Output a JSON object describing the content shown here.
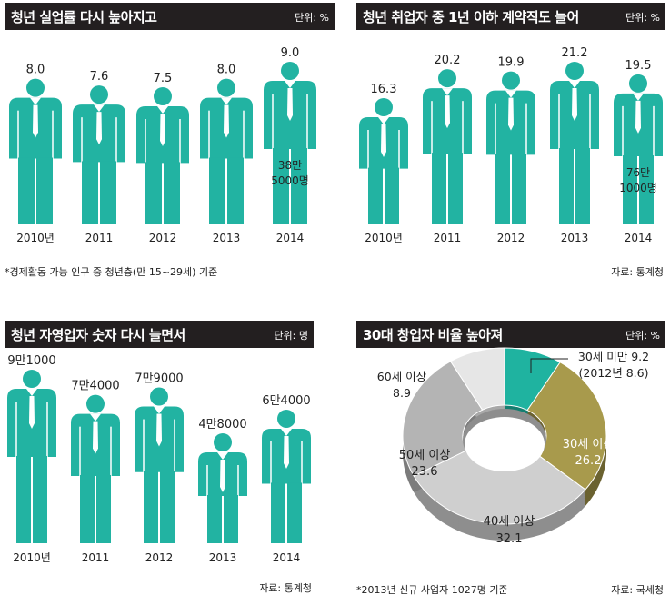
{
  "panels": [
    {
      "title": "청년 실업률 다시 높아지고",
      "unit": "단위: %",
      "note": "*경제활동 가능 인구 중 청년층(만 15~29세) 기준",
      "chart_data": {
        "type": "bar",
        "categories": [
          "2010년",
          "2011",
          "2012",
          "2013",
          "2014"
        ],
        "values": [
          8.0,
          7.6,
          7.5,
          8.0,
          9.0
        ],
        "value_labels": [
          "8.0",
          "7.6",
          "7.5",
          "8.0",
          "9.0"
        ],
        "annotation": {
          "index": 4,
          "lines": [
            "38만",
            "5000명"
          ]
        },
        "title": "청년 실업률 다시 높아지고",
        "unit": "단위: %"
      }
    },
    {
      "title": "청년 취업자 중 1년 이하 계약직도 늘어",
      "unit": "단위: %",
      "source": "자료: 통계청",
      "chart_data": {
        "type": "bar",
        "categories": [
          "2010년",
          "2011",
          "2012",
          "2013",
          "2014"
        ],
        "values": [
          16.3,
          20.2,
          19.9,
          21.2,
          19.5
        ],
        "value_labels": [
          "16.3",
          "20.2",
          "19.9",
          "21.2",
          "19.5"
        ],
        "annotation": {
          "index": 4,
          "lines": [
            "76만",
            "1000명"
          ]
        },
        "title": "청년 취업자 중 1년 이하 계약직도 늘어",
        "unit": "단위: %"
      }
    },
    {
      "title": "청년 자영업자 숫자 다시 늘면서",
      "unit": "단위: 명",
      "source": "자료: 통계청",
      "chart_data": {
        "type": "bar",
        "categories": [
          "2010년",
          "2011",
          "2012",
          "2013",
          "2014"
        ],
        "values": [
          91000,
          74000,
          79000,
          48000,
          64000
        ],
        "value_labels": [
          "9만1000",
          "7만4000",
          "7만9000",
          "4만8000",
          "6만4000"
        ],
        "title": "청년 자영업자 숫자 다시 늘면서",
        "unit": "단위: 명"
      }
    },
    {
      "title": "30대 창업자 비율 높아져",
      "unit": "단위: %",
      "note": "*2013년 신규 사업자 1027명 기준",
      "source": "자료: 국세청",
      "chart_data": {
        "type": "pie",
        "donut": true,
        "slices": [
          {
            "label": "30세 미만",
            "value": 9.2,
            "extra": "(2012년 8.6)",
            "value_text": "9.2",
            "color": "#1fb3a0",
            "side": "#157e70"
          },
          {
            "label": "30세 이상",
            "value": 26.2,
            "value_text": "26.2",
            "color": "#a89a4c",
            "side": "#6b6230"
          },
          {
            "label": "40세 이상",
            "value": 32.1,
            "value_text": "32.1",
            "color": "#cfcfcf",
            "side": "#8e8e8e"
          },
          {
            "label": "50세 이상",
            "value": 23.6,
            "value_text": "23.6",
            "color": "#b4b4b4",
            "side": "#7c7c7c"
          },
          {
            "label": "60세 이상",
            "value": 8.9,
            "value_text": "8.9",
            "color": "#e6e6e6",
            "side": "#a8a8a8"
          }
        ],
        "title": "30대 창업자 비율 높아져",
        "unit": "단위: %"
      }
    }
  ],
  "colors": {
    "figure": "#22b3a2",
    "tie": "#ffffff",
    "header": "#231f20"
  }
}
